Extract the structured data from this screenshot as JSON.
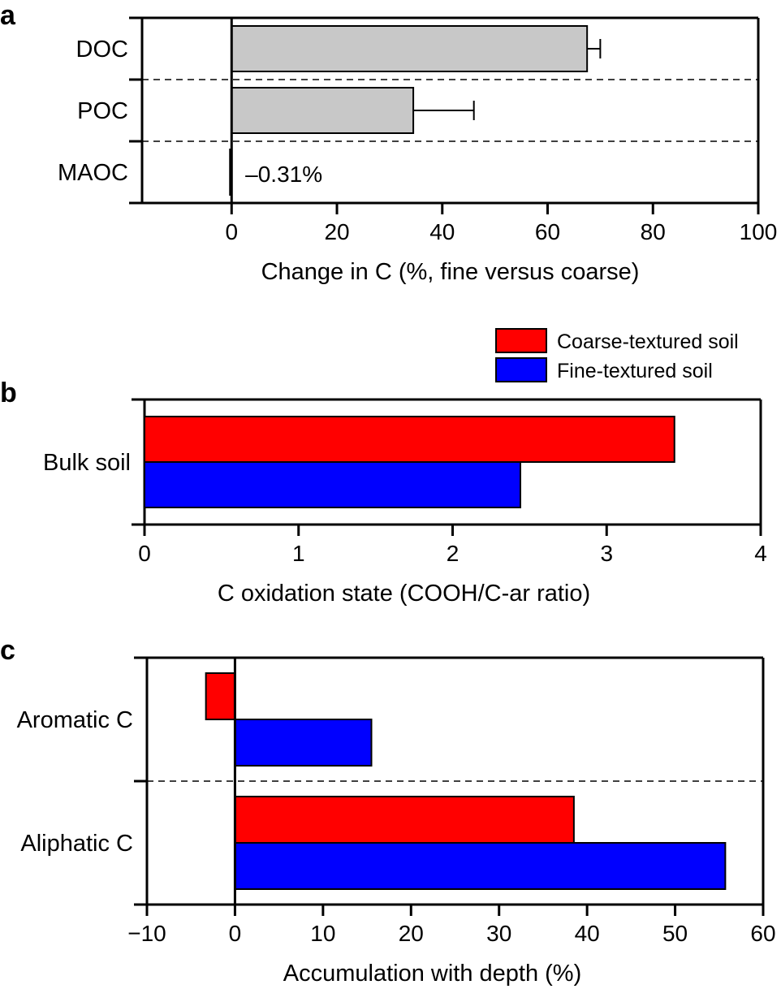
{
  "chart_data": [
    {
      "panel": "a",
      "type": "bar",
      "orientation": "horizontal",
      "categories": [
        "DOC",
        "POC",
        "MAOC"
      ],
      "values": [
        67.5,
        34.5,
        -0.31
      ],
      "errors": [
        2.5,
        11.5,
        0
      ],
      "annotation": "–0.31%",
      "xlabel": "Change in C (%, fine versus coarse)",
      "xlim": [
        -17,
        100
      ],
      "xticks": [
        0,
        20,
        40,
        60,
        80,
        100
      ],
      "xtick_labels": [
        "0",
        "20",
        "40",
        "60",
        "80",
        "100"
      ],
      "separators": "dashed",
      "bar_color": "#c8c8c8"
    },
    {
      "panel": "b",
      "type": "bar",
      "orientation": "horizontal",
      "categories": [
        "Bulk soil"
      ],
      "series": [
        {
          "name": "Coarse-textured soil",
          "color": "#ff0000",
          "values": [
            3.44
          ]
        },
        {
          "name": "Fine-textured soil",
          "color": "#0000ff",
          "values": [
            2.44
          ]
        }
      ],
      "xlabel": "C oxidation state (COOH/C-ar ratio)",
      "xlim": [
        0,
        4
      ],
      "xticks": [
        0,
        1,
        2,
        3,
        4
      ],
      "xtick_labels": [
        "0",
        "1",
        "2",
        "3",
        "4"
      ],
      "legend": "top-right"
    },
    {
      "panel": "c",
      "type": "bar",
      "orientation": "horizontal",
      "categories": [
        "Aromatic C",
        "Aliphatic C"
      ],
      "series": [
        {
          "name": "Coarse-textured soil",
          "color": "#ff0000",
          "values": [
            -3.3,
            38.5
          ]
        },
        {
          "name": "Fine-textured soil",
          "color": "#0000ff",
          "values": [
            15.5,
            55.7
          ]
        }
      ],
      "xlabel": "Accumulation with depth (%)",
      "xlim": [
        -10,
        60
      ],
      "xticks": [
        -10,
        0,
        10,
        20,
        30,
        40,
        50,
        60
      ],
      "xtick_labels": [
        "−10",
        "0",
        "10",
        "20",
        "30",
        "40",
        "50",
        "60"
      ],
      "separators": "dashed"
    }
  ]
}
